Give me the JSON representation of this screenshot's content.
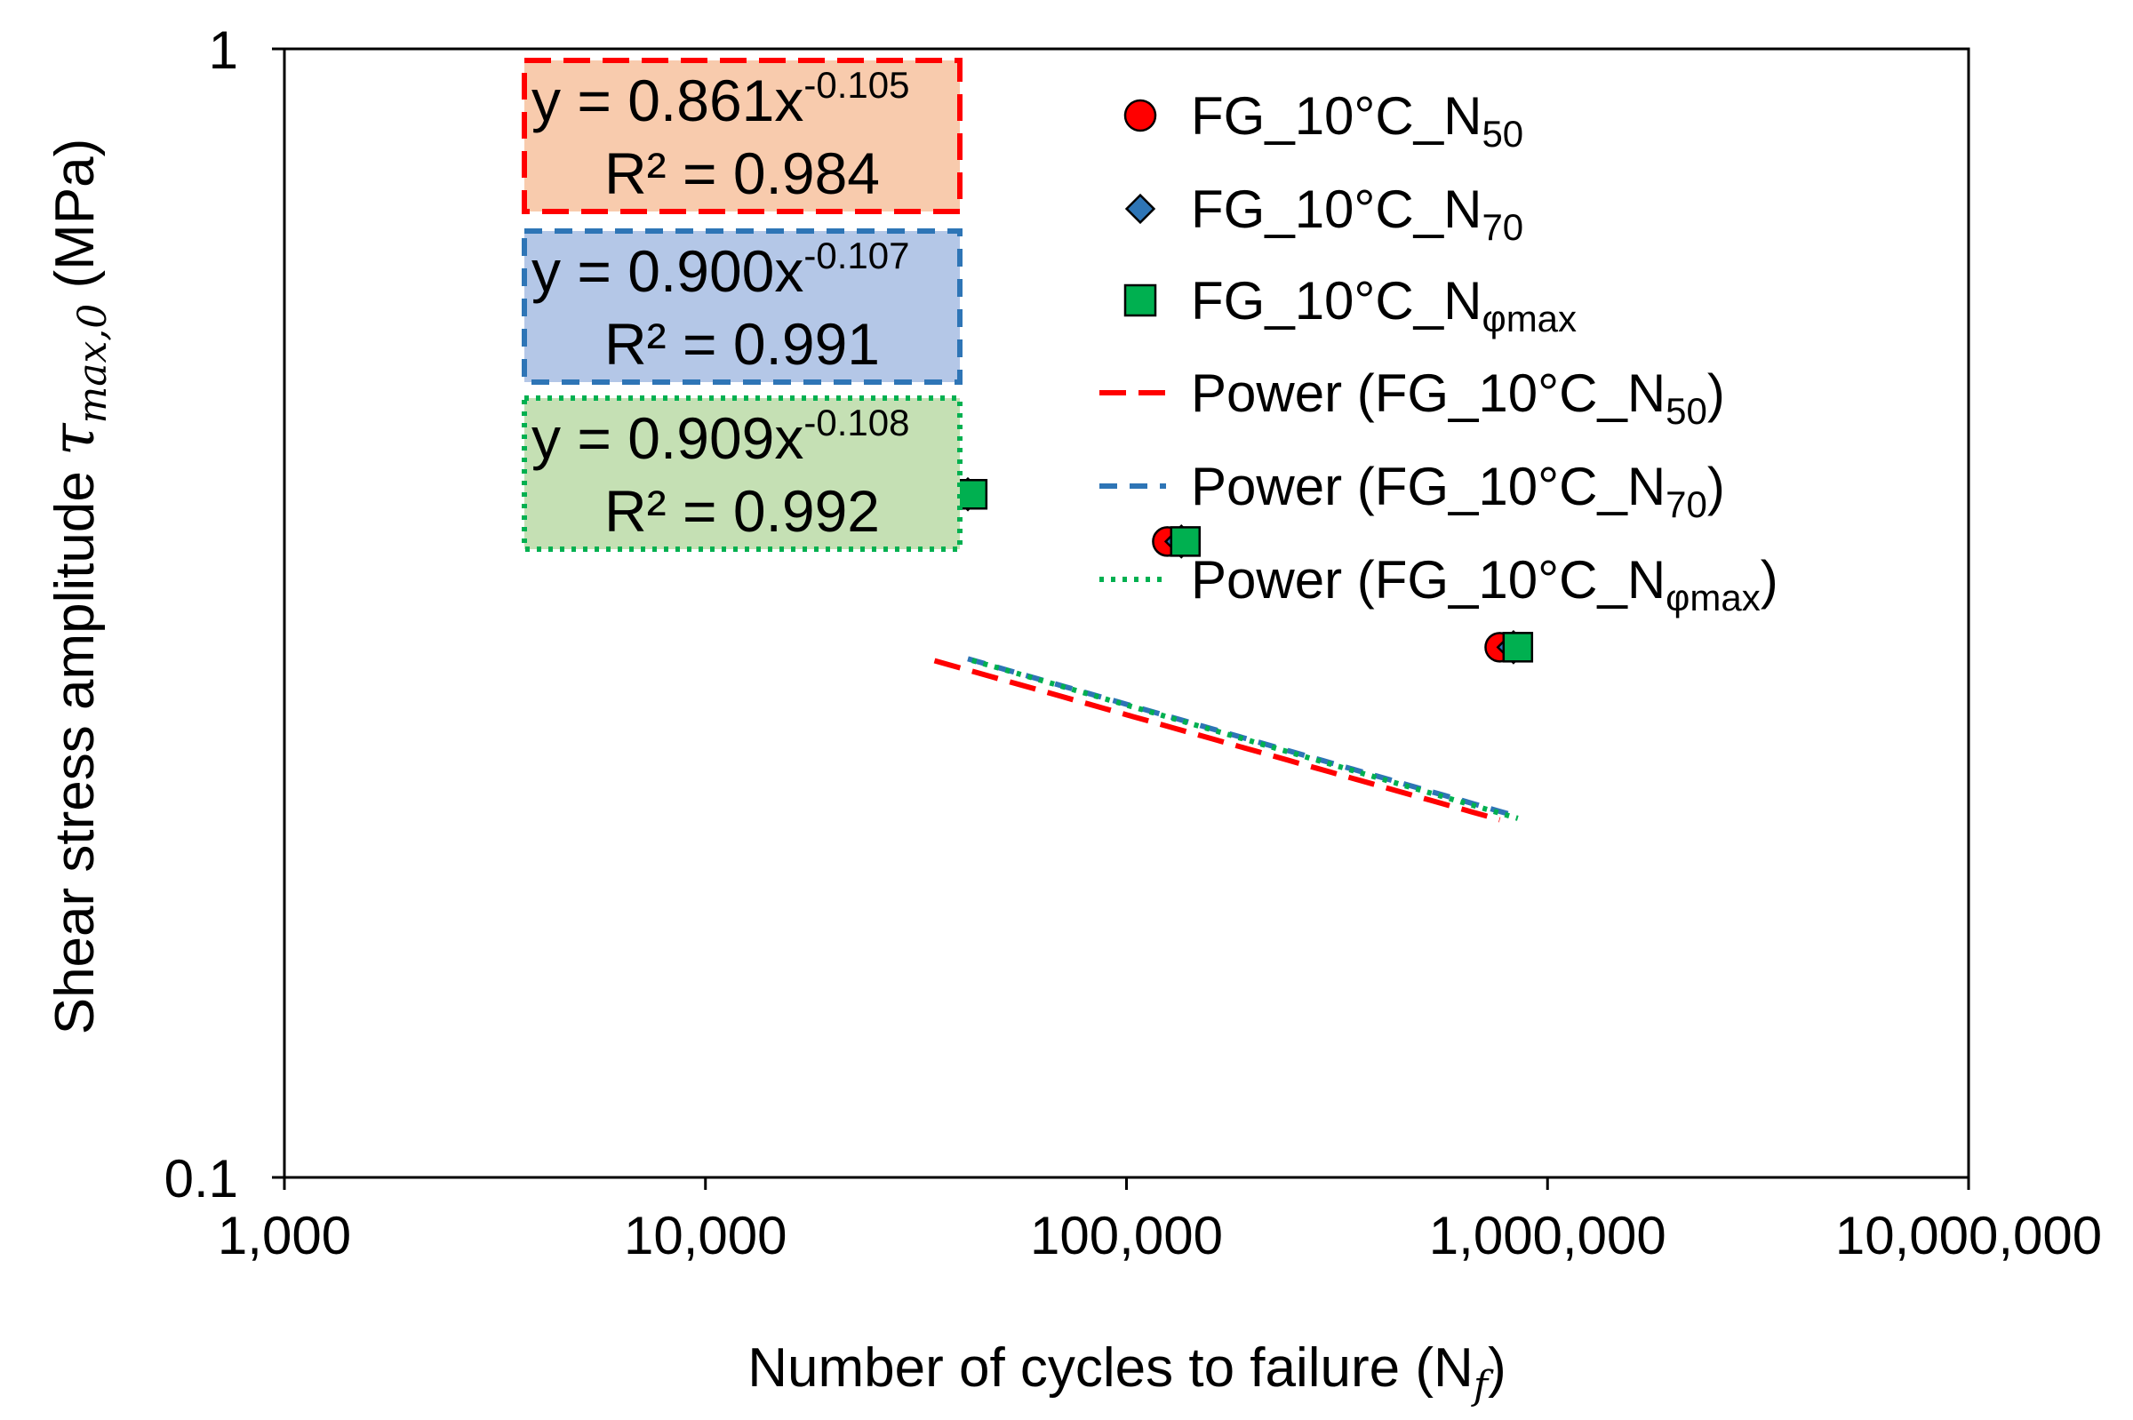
{
  "chart_data": {
    "type": "scatter",
    "x_scale": "log",
    "y_scale": "log",
    "xlim": [
      1000,
      10000000
    ],
    "ylim": [
      0.1,
      1
    ],
    "x_ticks": [
      "1,000",
      "10,000",
      "100,000",
      "1,000,000",
      "10,000,000"
    ],
    "y_ticks": [
      "1",
      "0.1"
    ],
    "xlabel": {
      "main": "Number of cycles to failure (N",
      "sub": "f",
      "close": ")"
    },
    "ylabel": {
      "main": "Shear stress amplitude ",
      "symbol": "τ",
      "sub": "max,0",
      "unit": " (MPa)"
    },
    "grid": false,
    "legend_position": "top-right",
    "series": [
      {
        "name": {
          "prefix": "FG_10°C_N",
          "sub": "50"
        },
        "marker": "circle",
        "color": "#ff0000",
        "x": [
          35000,
          125000,
          770000
        ],
        "y": [
          0.403,
          0.366,
          0.295
        ]
      },
      {
        "name": {
          "prefix": "FG_10°C_N",
          "sub": "70"
        },
        "marker": "diamond",
        "color": "#2e75b6",
        "x": [
          42000,
          135000,
          830000
        ],
        "y": [
          0.403,
          0.366,
          0.295
        ]
      },
      {
        "name": {
          "prefix": "FG_10°C_N",
          "sub": "φmax"
        },
        "marker": "square",
        "color": "#00b050",
        "x": [
          43000,
          138000,
          850000
        ],
        "y": [
          0.403,
          0.366,
          0.295
        ]
      }
    ],
    "trendlines": [
      {
        "name": {
          "prefix": "Power (FG_10°C_N",
          "sub": "50",
          "close": ")"
        },
        "style": "long-dash",
        "color": "#ff0000",
        "a": 0.861,
        "b": -0.105,
        "x_range": [
          35000,
          770000
        ],
        "equation": {
          "lead": "y = 0.861x",
          "exp": "-0.105"
        },
        "r2": "R² = 0.984",
        "box_fill": "#f8cbad"
      },
      {
        "name": {
          "prefix": "Power (FG_10°C_N",
          "sub": "70",
          "close": ")"
        },
        "style": "dash",
        "color": "#2e75b6",
        "a": 0.9,
        "b": -0.107,
        "x_range": [
          42000,
          830000
        ],
        "equation": {
          "lead": "y = 0.900x",
          "exp": "-0.107"
        },
        "r2": "R² = 0.991",
        "box_fill": "#b4c7e7"
      },
      {
        "name": {
          "prefix": "Power (FG_10°C_N",
          "sub": "φmax",
          "close": ")"
        },
        "style": "dot",
        "color": "#00b050",
        "a": 0.909,
        "b": -0.108,
        "x_range": [
          43000,
          850000
        ],
        "equation": {
          "lead": "y = 0.909x",
          "exp": "-0.108"
        },
        "r2": "R² = 0.992",
        "box_fill": "#c5e0b4"
      }
    ]
  }
}
